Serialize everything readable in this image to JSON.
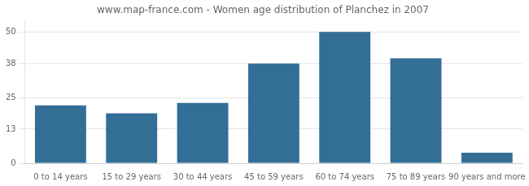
{
  "chart_data": {
    "type": "bar",
    "title": "www.map-france.com - Women age distribution of Planchez in 2007",
    "categories": [
      "0 to 14 years",
      "15 to 29 years",
      "30 to 44 years",
      "45 to 59 years",
      "60 to 74 years",
      "75 to 89 years",
      "90 years and more"
    ],
    "values": [
      22,
      19,
      23,
      38,
      50,
      40,
      4
    ],
    "color": "#336e96",
    "ylim": [
      0,
      54
    ],
    "yticks": [
      0,
      13,
      25,
      38,
      50
    ],
    "grid": true
  }
}
